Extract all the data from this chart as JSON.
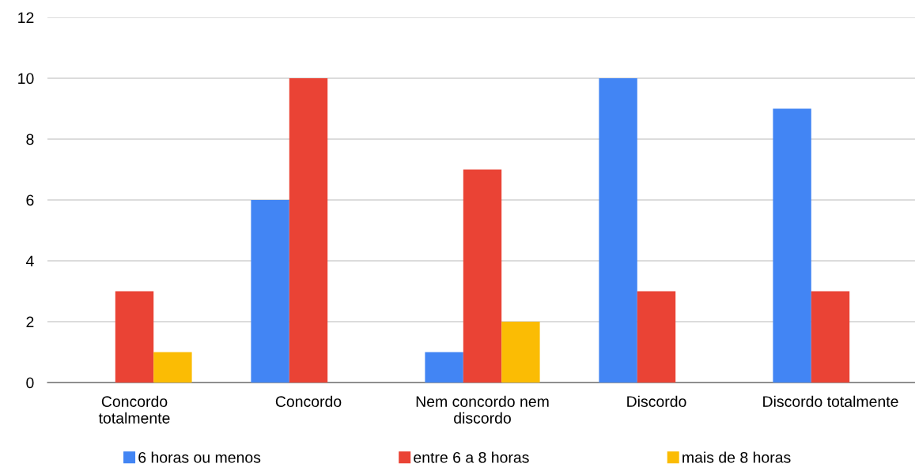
{
  "chart_data": {
    "type": "bar",
    "categories": [
      "Concordo\ntotalmente",
      "Concordo",
      "Nem concordo nem\ndiscordo",
      "Discordo",
      "Discordo totalmente"
    ],
    "series": [
      {
        "name": "6 horas ou menos",
        "color": "#4285f4",
        "values": [
          0,
          6,
          1,
          10,
          9
        ]
      },
      {
        "name": "entre 6 a 8 horas",
        "color": "#ea4335",
        "values": [
          3,
          10,
          7,
          3,
          3
        ]
      },
      {
        "name": "mais de 8 horas",
        "color": "#fbbc04",
        "values": [
          1,
          0,
          2,
          0,
          0
        ]
      }
    ],
    "ylim": [
      0,
      12
    ],
    "yticks": [
      0,
      2,
      4,
      6,
      8,
      10,
      12
    ],
    "grid": "y",
    "legend": "bottom"
  }
}
